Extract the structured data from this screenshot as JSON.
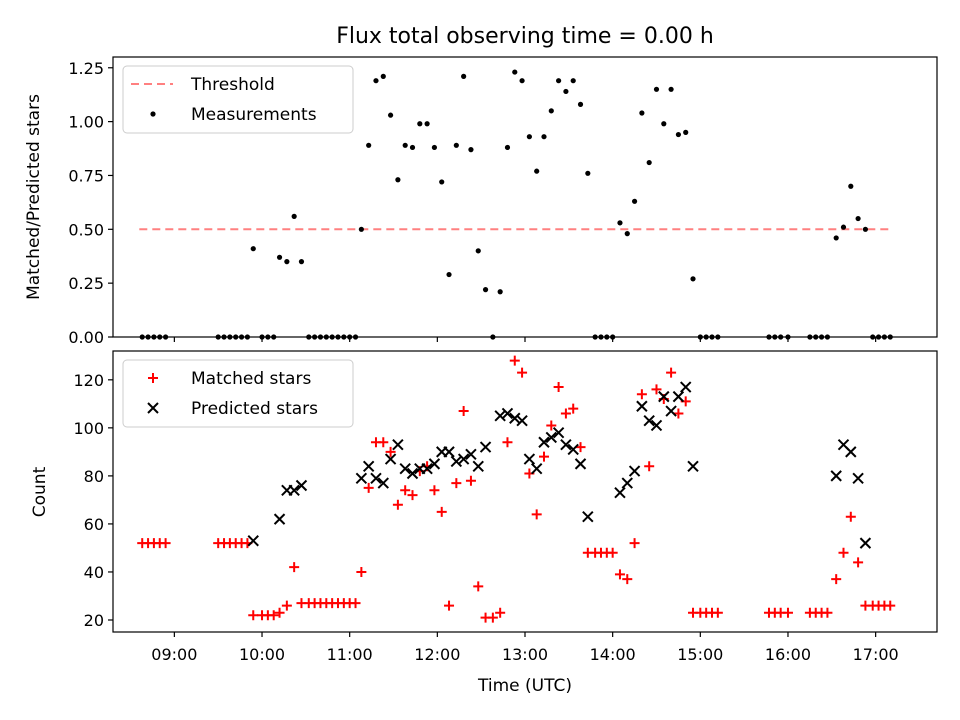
{
  "chart_data": [
    {
      "type": "scatter",
      "title": "Flux total observing time = 0.00 h",
      "ylabel": "Matched/Predicted stars",
      "xlabel": "",
      "xlim": [
        "08:18",
        "17:42"
      ],
      "ylim": [
        0,
        1.3
      ],
      "yticks": [
        "0.00",
        "0.25",
        "0.50",
        "0.75",
        "1.00",
        "1.25"
      ],
      "grid": false,
      "legend_position": "top-left",
      "threshold": {
        "name": "Threshold",
        "value": 0.5,
        "x": [
          "08:36",
          "17:12"
        ],
        "color": "#ff8080",
        "style": "dashed"
      },
      "series": [
        {
          "name": "Measurements",
          "color": "#000000",
          "marker": "dot",
          "points": [
            [
              "08:38",
              0
            ],
            [
              "08:42",
              0
            ],
            [
              "08:46",
              0
            ],
            [
              "08:50",
              0
            ],
            [
              "08:54",
              0
            ],
            [
              "09:30",
              0
            ],
            [
              "09:34",
              0
            ],
            [
              "09:38",
              0
            ],
            [
              "09:42",
              0
            ],
            [
              "09:46",
              0
            ],
            [
              "09:50",
              0
            ],
            [
              "09:54",
              0.41
            ],
            [
              "10:00",
              0
            ],
            [
              "10:04",
              0
            ],
            [
              "10:08",
              0
            ],
            [
              "10:12",
              0.37
            ],
            [
              "10:17",
              0.35
            ],
            [
              "10:22",
              0.56
            ],
            [
              "10:27",
              0.35
            ],
            [
              "10:32",
              0
            ],
            [
              "10:36",
              0
            ],
            [
              "10:40",
              0
            ],
            [
              "10:44",
              0
            ],
            [
              "10:48",
              0
            ],
            [
              "10:52",
              0
            ],
            [
              "10:56",
              0
            ],
            [
              "11:00",
              0
            ],
            [
              "11:04",
              0
            ],
            [
              "11:08",
              0.5
            ],
            [
              "11:13",
              0.89
            ],
            [
              "11:18",
              1.19
            ],
            [
              "11:23",
              1.21
            ],
            [
              "11:28",
              1.03
            ],
            [
              "11:33",
              0.73
            ],
            [
              "11:38",
              0.89
            ],
            [
              "11:43",
              0.88
            ],
            [
              "11:48",
              0.99
            ],
            [
              "11:53",
              0.99
            ],
            [
              "11:58",
              0.88
            ],
            [
              "12:03",
              0.72
            ],
            [
              "12:08",
              0.29
            ],
            [
              "12:13",
              0.89
            ],
            [
              "12:18",
              1.21
            ],
            [
              "12:23",
              0.87
            ],
            [
              "12:28",
              0.4
            ],
            [
              "12:33",
              0.22
            ],
            [
              "12:38",
              0
            ],
            [
              "12:43",
              0.21
            ],
            [
              "12:48",
              0.88
            ],
            [
              "12:53",
              1.23
            ],
            [
              "12:58",
              1.19
            ],
            [
              "13:03",
              0.93
            ],
            [
              "13:08",
              0.77
            ],
            [
              "13:13",
              0.93
            ],
            [
              "13:18",
              1.05
            ],
            [
              "13:23",
              1.19
            ],
            [
              "13:28",
              1.14
            ],
            [
              "13:33",
              1.19
            ],
            [
              "13:38",
              1.08
            ],
            [
              "13:43",
              0.76
            ],
            [
              "13:48",
              0
            ],
            [
              "13:52",
              0
            ],
            [
              "13:56",
              0
            ],
            [
              "14:00",
              0
            ],
            [
              "14:05",
              0.53
            ],
            [
              "14:10",
              0.48
            ],
            [
              "14:15",
              0.63
            ],
            [
              "14:20",
              1.04
            ],
            [
              "14:25",
              0.81
            ],
            [
              "14:30",
              1.15
            ],
            [
              "14:35",
              0.99
            ],
            [
              "14:40",
              1.15
            ],
            [
              "14:45",
              0.94
            ],
            [
              "14:50",
              0.95
            ],
            [
              "14:55",
              0.27
            ],
            [
              "15:00",
              0
            ],
            [
              "15:04",
              0
            ],
            [
              "15:08",
              0
            ],
            [
              "15:12",
              0
            ],
            [
              "15:47",
              0
            ],
            [
              "15:51",
              0
            ],
            [
              "15:55",
              0
            ],
            [
              "16:00",
              0
            ],
            [
              "16:15",
              0
            ],
            [
              "16:19",
              0
            ],
            [
              "16:23",
              0
            ],
            [
              "16:27",
              0
            ],
            [
              "16:33",
              0.46
            ],
            [
              "16:38",
              0.51
            ],
            [
              "16:43",
              0.7
            ],
            [
              "16:48",
              0.55
            ],
            [
              "16:53",
              0.5
            ],
            [
              "16:58",
              0
            ],
            [
              "17:02",
              0
            ],
            [
              "17:06",
              0
            ],
            [
              "17:10",
              0
            ]
          ]
        }
      ]
    },
    {
      "type": "scatter",
      "title": "",
      "xlabel": "Time (UTC)",
      "ylabel": "Count",
      "xlim": [
        "08:18",
        "17:42"
      ],
      "ylim": [
        15,
        132
      ],
      "xticks": [
        "09:00",
        "10:00",
        "11:00",
        "12:00",
        "13:00",
        "14:00",
        "15:00",
        "16:00",
        "17:00"
      ],
      "yticks": [
        "20",
        "40",
        "60",
        "80",
        "100",
        "120"
      ],
      "grid": false,
      "legend_position": "top-left",
      "series": [
        {
          "name": "Matched stars",
          "color": "#ff0000",
          "marker": "plus",
          "points": [
            [
              "08:38",
              52
            ],
            [
              "08:42",
              52
            ],
            [
              "08:46",
              52
            ],
            [
              "08:50",
              52
            ],
            [
              "08:54",
              52
            ],
            [
              "09:30",
              52
            ],
            [
              "09:34",
              52
            ],
            [
              "09:38",
              52
            ],
            [
              "09:42",
              52
            ],
            [
              "09:46",
              52
            ],
            [
              "09:50",
              52
            ],
            [
              "09:54",
              22
            ],
            [
              "10:00",
              22
            ],
            [
              "10:04",
              22
            ],
            [
              "10:08",
              22
            ],
            [
              "10:12",
              23
            ],
            [
              "10:17",
              26
            ],
            [
              "10:22",
              42
            ],
            [
              "10:27",
              27
            ],
            [
              "10:32",
              27
            ],
            [
              "10:36",
              27
            ],
            [
              "10:40",
              27
            ],
            [
              "10:44",
              27
            ],
            [
              "10:48",
              27
            ],
            [
              "10:52",
              27
            ],
            [
              "10:56",
              27
            ],
            [
              "11:00",
              27
            ],
            [
              "11:04",
              27
            ],
            [
              "11:08",
              40
            ],
            [
              "11:13",
              75
            ],
            [
              "11:18",
              94
            ],
            [
              "11:23",
              94
            ],
            [
              "11:28",
              90
            ],
            [
              "11:33",
              68
            ],
            [
              "11:38",
              74
            ],
            [
              "11:43",
              72
            ],
            [
              "11:48",
              82
            ],
            [
              "11:53",
              84
            ],
            [
              "11:58",
              74
            ],
            [
              "12:03",
              65
            ],
            [
              "12:08",
              26
            ],
            [
              "12:13",
              77
            ],
            [
              "12:18",
              107
            ],
            [
              "12:23",
              78
            ],
            [
              "12:28",
              34
            ],
            [
              "12:33",
              21
            ],
            [
              "12:38",
              21
            ],
            [
              "12:43",
              23
            ],
            [
              "12:48",
              94
            ],
            [
              "12:53",
              128
            ],
            [
              "12:58",
              123
            ],
            [
              "13:03",
              81
            ],
            [
              "13:08",
              64
            ],
            [
              "13:13",
              88
            ],
            [
              "13:18",
              101
            ],
            [
              "13:23",
              117
            ],
            [
              "13:28",
              106
            ],
            [
              "13:33",
              108
            ],
            [
              "13:38",
              92
            ],
            [
              "13:43",
              48
            ],
            [
              "13:48",
              48
            ],
            [
              "13:52",
              48
            ],
            [
              "13:56",
              48
            ],
            [
              "14:00",
              48
            ],
            [
              "14:05",
              39
            ],
            [
              "14:10",
              37
            ],
            [
              "14:15",
              52
            ],
            [
              "14:20",
              114
            ],
            [
              "14:25",
              84
            ],
            [
              "14:30",
              116
            ],
            [
              "14:35",
              112
            ],
            [
              "14:40",
              123
            ],
            [
              "14:45",
              106
            ],
            [
              "14:50",
              111
            ],
            [
              "14:55",
              23
            ],
            [
              "15:00",
              23
            ],
            [
              "15:04",
              23
            ],
            [
              "15:08",
              23
            ],
            [
              "15:12",
              23
            ],
            [
              "15:47",
              23
            ],
            [
              "15:51",
              23
            ],
            [
              "15:55",
              23
            ],
            [
              "16:00",
              23
            ],
            [
              "16:15",
              23
            ],
            [
              "16:19",
              23
            ],
            [
              "16:23",
              23
            ],
            [
              "16:27",
              23
            ],
            [
              "16:33",
              37
            ],
            [
              "16:38",
              48
            ],
            [
              "16:43",
              63
            ],
            [
              "16:48",
              44
            ],
            [
              "16:53",
              26
            ],
            [
              "16:58",
              26
            ],
            [
              "17:02",
              26
            ],
            [
              "17:06",
              26
            ],
            [
              "17:10",
              26
            ]
          ]
        },
        {
          "name": "Predicted stars",
          "color": "#000000",
          "marker": "x",
          "points": [
            [
              "09:54",
              53
            ],
            [
              "10:12",
              62
            ],
            [
              "10:17",
              74
            ],
            [
              "10:22",
              74
            ],
            [
              "10:27",
              76
            ],
            [
              "11:08",
              79
            ],
            [
              "11:13",
              84
            ],
            [
              "11:18",
              79
            ],
            [
              "11:23",
              77
            ],
            [
              "11:28",
              87
            ],
            [
              "11:33",
              93
            ],
            [
              "11:38",
              83
            ],
            [
              "11:43",
              81
            ],
            [
              "11:48",
              83
            ],
            [
              "11:53",
              83
            ],
            [
              "11:58",
              85
            ],
            [
              "12:03",
              90
            ],
            [
              "12:08",
              90
            ],
            [
              "12:13",
              86
            ],
            [
              "12:18",
              87
            ],
            [
              "12:23",
              89
            ],
            [
              "12:28",
              84
            ],
            [
              "12:33",
              92
            ],
            [
              "12:43",
              105
            ],
            [
              "12:48",
              106
            ],
            [
              "12:53",
              104
            ],
            [
              "12:58",
              103
            ],
            [
              "13:03",
              87
            ],
            [
              "13:08",
              83
            ],
            [
              "13:13",
              94
            ],
            [
              "13:18",
              96
            ],
            [
              "13:23",
              98
            ],
            [
              "13:28",
              93
            ],
            [
              "13:33",
              91
            ],
            [
              "13:38",
              85
            ],
            [
              "13:43",
              63
            ],
            [
              "14:05",
              73
            ],
            [
              "14:10",
              77
            ],
            [
              "14:15",
              82
            ],
            [
              "14:20",
              109
            ],
            [
              "14:25",
              103
            ],
            [
              "14:30",
              101
            ],
            [
              "14:35",
              113
            ],
            [
              "14:40",
              107
            ],
            [
              "14:45",
              113
            ],
            [
              "14:50",
              117
            ],
            [
              "14:55",
              84
            ],
            [
              "16:33",
              80
            ],
            [
              "16:38",
              93
            ],
            [
              "16:43",
              90
            ],
            [
              "16:48",
              79
            ],
            [
              "16:53",
              52
            ]
          ]
        }
      ]
    }
  ]
}
